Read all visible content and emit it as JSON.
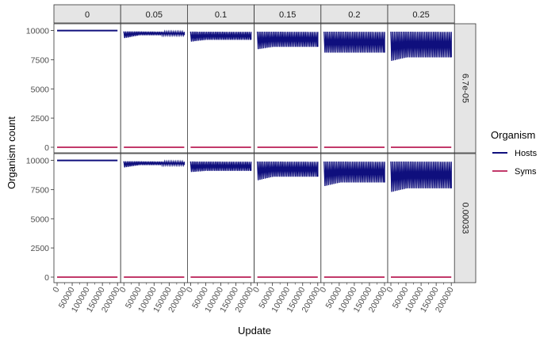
{
  "chart_data": {
    "type": "line",
    "facet_cols": [
      "0",
      "0.05",
      "0.1",
      "0.15",
      "0.2",
      "0.25"
    ],
    "facet_rows": [
      "6.7e-05",
      "0.00033"
    ],
    "xlabel": "Update",
    "ylabel": "Organism count",
    "xlim": [
      0,
      200000
    ],
    "ylim": [
      0,
      10000
    ],
    "x_ticks": [
      0,
      50000,
      100000,
      150000,
      200000
    ],
    "x_tick_labels": [
      "0",
      "50000",
      "100000",
      "150000",
      "200000"
    ],
    "y_ticks": [
      0,
      2500,
      5000,
      7500,
      10000
    ],
    "y_tick_labels": [
      "0",
      "2500",
      "5000",
      "7500",
      "10000"
    ],
    "grid": false,
    "legend": {
      "title": "Organism",
      "position": "right",
      "entries": [
        {
          "name": "Hosts",
          "color": "#0f0f7d"
        },
        {
          "name": "Syms",
          "color": "#c2396a"
        }
      ]
    },
    "series": [
      {
        "name": "Hosts",
        "color": "#0f0f7d",
        "panels": [
          {
            "row": "6.7e-05",
            "col": "0",
            "x": [
              0,
              200000
            ],
            "y": [
              9990,
              9990
            ]
          },
          {
            "row": "6.7e-05",
            "col": "0.05",
            "x": [
              0,
              200000
            ],
            "y_range": [
              [
                9350,
                9920
              ],
              [
                9600,
                9880
              ]
            ]
          },
          {
            "row": "6.7e-05",
            "col": "0.1",
            "x": [
              0,
              200000
            ],
            "y_range": [
              [
                9050,
                9900
              ],
              [
                9200,
                9880
              ]
            ]
          },
          {
            "row": "6.7e-05",
            "col": "0.15",
            "x": [
              0,
              200000
            ],
            "y_range": [
              [
                8400,
                9900
              ],
              [
                8600,
                9880
              ]
            ]
          },
          {
            "row": "6.7e-05",
            "col": "0.2",
            "x": [
              0,
              200000
            ],
            "y_range": [
              [
                8100,
                9900
              ],
              [
                8100,
                9880
              ]
            ]
          },
          {
            "row": "6.7e-05",
            "col": "0.25",
            "x": [
              0,
              200000
            ],
            "y_range": [
              [
                7400,
                9900
              ],
              [
                7700,
                9880
              ]
            ]
          },
          {
            "row": "0.00033",
            "col": "0",
            "x": [
              0,
              200000
            ],
            "y": [
              9990,
              9990
            ]
          },
          {
            "row": "0.00033",
            "col": "0.05",
            "x": [
              0,
              200000
            ],
            "y_range": [
              [
                9400,
                9920
              ],
              [
                9600,
                9880
              ]
            ]
          },
          {
            "row": "0.00033",
            "col": "0.1",
            "x": [
              0,
              200000
            ],
            "y_range": [
              [
                9000,
                9900
              ],
              [
                9100,
                9880
              ]
            ]
          },
          {
            "row": "0.00033",
            "col": "0.15",
            "x": [
              0,
              200000
            ],
            "y_range": [
              [
                8300,
                9900
              ],
              [
                8600,
                9880
              ]
            ]
          },
          {
            "row": "0.00033",
            "col": "0.2",
            "x": [
              0,
              200000
            ],
            "y_range": [
              [
                7800,
                9900
              ],
              [
                8100,
                9880
              ]
            ]
          },
          {
            "row": "0.00033",
            "col": "0.25",
            "x": [
              0,
              200000
            ],
            "y_range": [
              [
                7300,
                9900
              ],
              [
                7600,
                9880
              ]
            ]
          }
        ]
      },
      {
        "name": "Syms",
        "color": "#c2396a",
        "panels": [
          {
            "row": "6.7e-05",
            "col": "all",
            "x": [
              0,
              200000
            ],
            "y": [
              0,
              0
            ]
          },
          {
            "row": "0.00033",
            "col": "all",
            "x": [
              0,
              200000
            ],
            "y": [
              0,
              0
            ]
          }
        ]
      }
    ]
  }
}
